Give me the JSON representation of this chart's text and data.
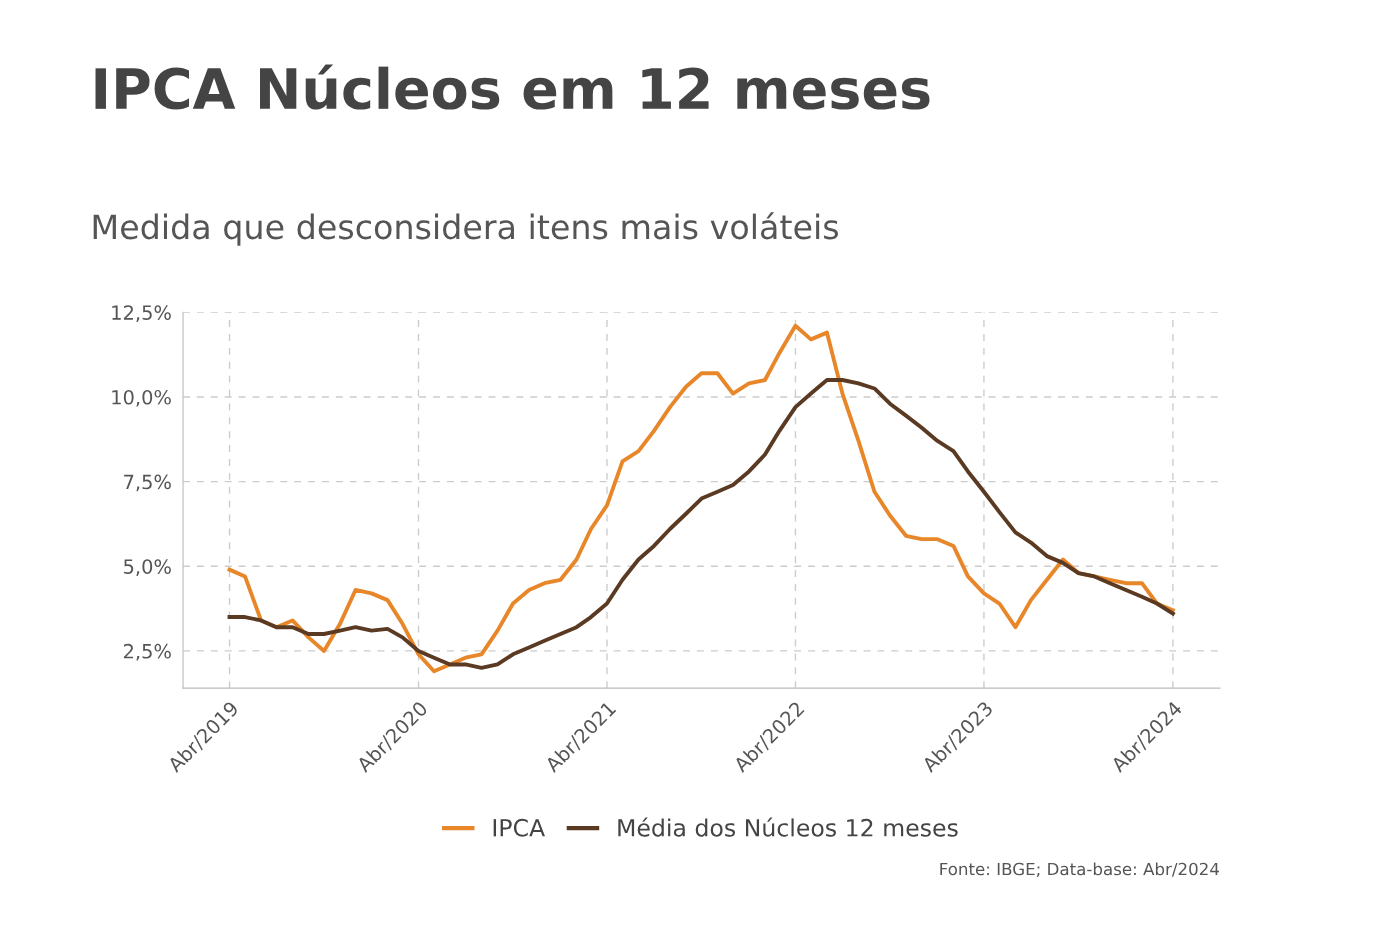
{
  "chart_data": {
    "type": "line",
    "title": "IPCA Núcleos em 12 meses",
    "subtitle": "Medida que desconsidera itens mais voláteis",
    "x": [
      "2019-04",
      "2019-05",
      "2019-06",
      "2019-07",
      "2019-08",
      "2019-09",
      "2019-10",
      "2019-11",
      "2019-12",
      "2020-01",
      "2020-02",
      "2020-03",
      "2020-04",
      "2020-05",
      "2020-06",
      "2020-07",
      "2020-08",
      "2020-09",
      "2020-10",
      "2020-11",
      "2020-12",
      "2021-01",
      "2021-02",
      "2021-03",
      "2021-04",
      "2021-05",
      "2021-06",
      "2021-07",
      "2021-08",
      "2021-09",
      "2021-10",
      "2021-11",
      "2021-12",
      "2022-01",
      "2022-02",
      "2022-03",
      "2022-04",
      "2022-05",
      "2022-06",
      "2022-07",
      "2022-08",
      "2022-09",
      "2022-10",
      "2022-11",
      "2022-12",
      "2023-01",
      "2023-02",
      "2023-03",
      "2023-04",
      "2023-05",
      "2023-06",
      "2023-07",
      "2023-08",
      "2023-09",
      "2023-10",
      "2023-11",
      "2023-12",
      "2024-01",
      "2024-02",
      "2024-03",
      "2024-04"
    ],
    "series": [
      {
        "name": "IPCA",
        "color": "#e8862a",
        "values": [
          4.9,
          4.7,
          3.4,
          3.2,
          3.4,
          2.9,
          2.5,
          3.3,
          4.3,
          4.2,
          4.0,
          3.3,
          2.4,
          1.9,
          2.1,
          2.3,
          2.4,
          3.1,
          3.9,
          4.3,
          4.5,
          4.6,
          5.2,
          6.1,
          6.8,
          8.1,
          8.4,
          9.0,
          9.7,
          10.3,
          10.7,
          10.7,
          10.1,
          10.4,
          10.5,
          11.3,
          12.1,
          11.7,
          11.9,
          10.1,
          8.7,
          7.2,
          6.5,
          5.9,
          5.8,
          5.8,
          5.6,
          4.7,
          4.2,
          3.9,
          3.2,
          4.0,
          4.6,
          5.2,
          4.8,
          4.7,
          4.6,
          4.5,
          4.5,
          3.9,
          3.7
        ]
      },
      {
        "name": "Média dos Núcleos 12 meses",
        "color": "#5a3a22",
        "values": [
          3.5,
          3.5,
          3.4,
          3.2,
          3.2,
          3.0,
          3.0,
          3.1,
          3.2,
          3.1,
          3.15,
          2.9,
          2.5,
          2.3,
          2.1,
          2.1,
          2.0,
          2.1,
          2.4,
          2.6,
          2.8,
          3.0,
          3.2,
          3.5,
          3.9,
          4.6,
          5.2,
          5.6,
          6.1,
          6.55,
          7.0,
          7.2,
          7.4,
          7.8,
          8.3,
          9.0,
          9.7,
          10.1,
          10.5,
          10.5,
          10.4,
          10.25,
          9.8,
          9.45,
          9.1,
          8.7,
          8.4,
          7.8,
          7.2,
          6.6,
          6.0,
          5.7,
          5.3,
          5.1,
          4.8,
          4.7,
          4.5,
          4.3,
          4.1,
          3.9,
          3.6
        ]
      }
    ],
    "xlim": [
      "2019-01",
      "2024-07"
    ],
    "xticks": [
      {
        "value": "2019-04",
        "label": "Abr/2019"
      },
      {
        "value": "2020-04",
        "label": "Abr/2020"
      },
      {
        "value": "2021-04",
        "label": "Abr/2021"
      },
      {
        "value": "2022-04",
        "label": "Abr/2022"
      },
      {
        "value": "2023-04",
        "label": "Abr/2023"
      },
      {
        "value": "2024-04",
        "label": "Abr/2024"
      }
    ],
    "ylim": [
      1.4,
      12.5
    ],
    "yticks": [
      {
        "value": 2.5,
        "label": "2,5%"
      },
      {
        "value": 5.0,
        "label": "5,0%"
      },
      {
        "value": 7.5,
        "label": "7,5%"
      },
      {
        "value": 10.0,
        "label": "10,0%"
      },
      {
        "value": 12.5,
        "label": "12,5%"
      }
    ],
    "grid": true,
    "legend": "bottom",
    "line_style": "solid",
    "marker": "none",
    "annotations": [
      "Fonte: IBGE; Data-base: Abr/2024"
    ]
  }
}
